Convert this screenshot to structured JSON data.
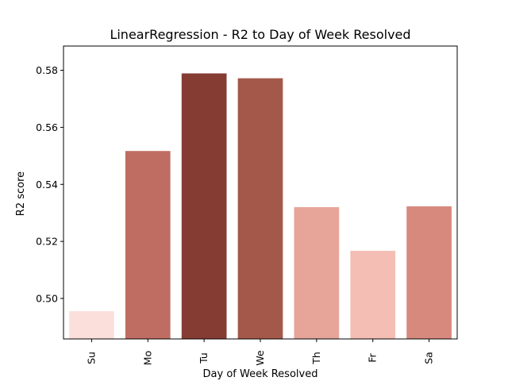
{
  "chart_data": {
    "type": "bar",
    "title": "LinearRegression - R2 to Day of Week Resolved",
    "xlabel": "Day of Week Resolved",
    "ylabel": "R2 score",
    "categories": [
      "Su",
      "Mo",
      "Tu",
      "We",
      "Th",
      "Fr",
      "Sa"
    ],
    "values": [
      0.4955,
      0.5517,
      0.5789,
      0.5772,
      0.532,
      0.5167,
      0.5323
    ],
    "colors": [
      "#fbdfdb",
      "#bf6d62",
      "#843c33",
      "#a35849",
      "#e7a599",
      "#f4beb4",
      "#d6897c"
    ],
    "ylim": [
      0.4858,
      0.5885
    ],
    "yticks": [
      0.5,
      0.52,
      0.54,
      0.56,
      0.58
    ],
    "ytick_labels": [
      "0.50",
      "0.52",
      "0.54",
      "0.56",
      "0.58"
    ],
    "grid": false,
    "legend": "none"
  }
}
